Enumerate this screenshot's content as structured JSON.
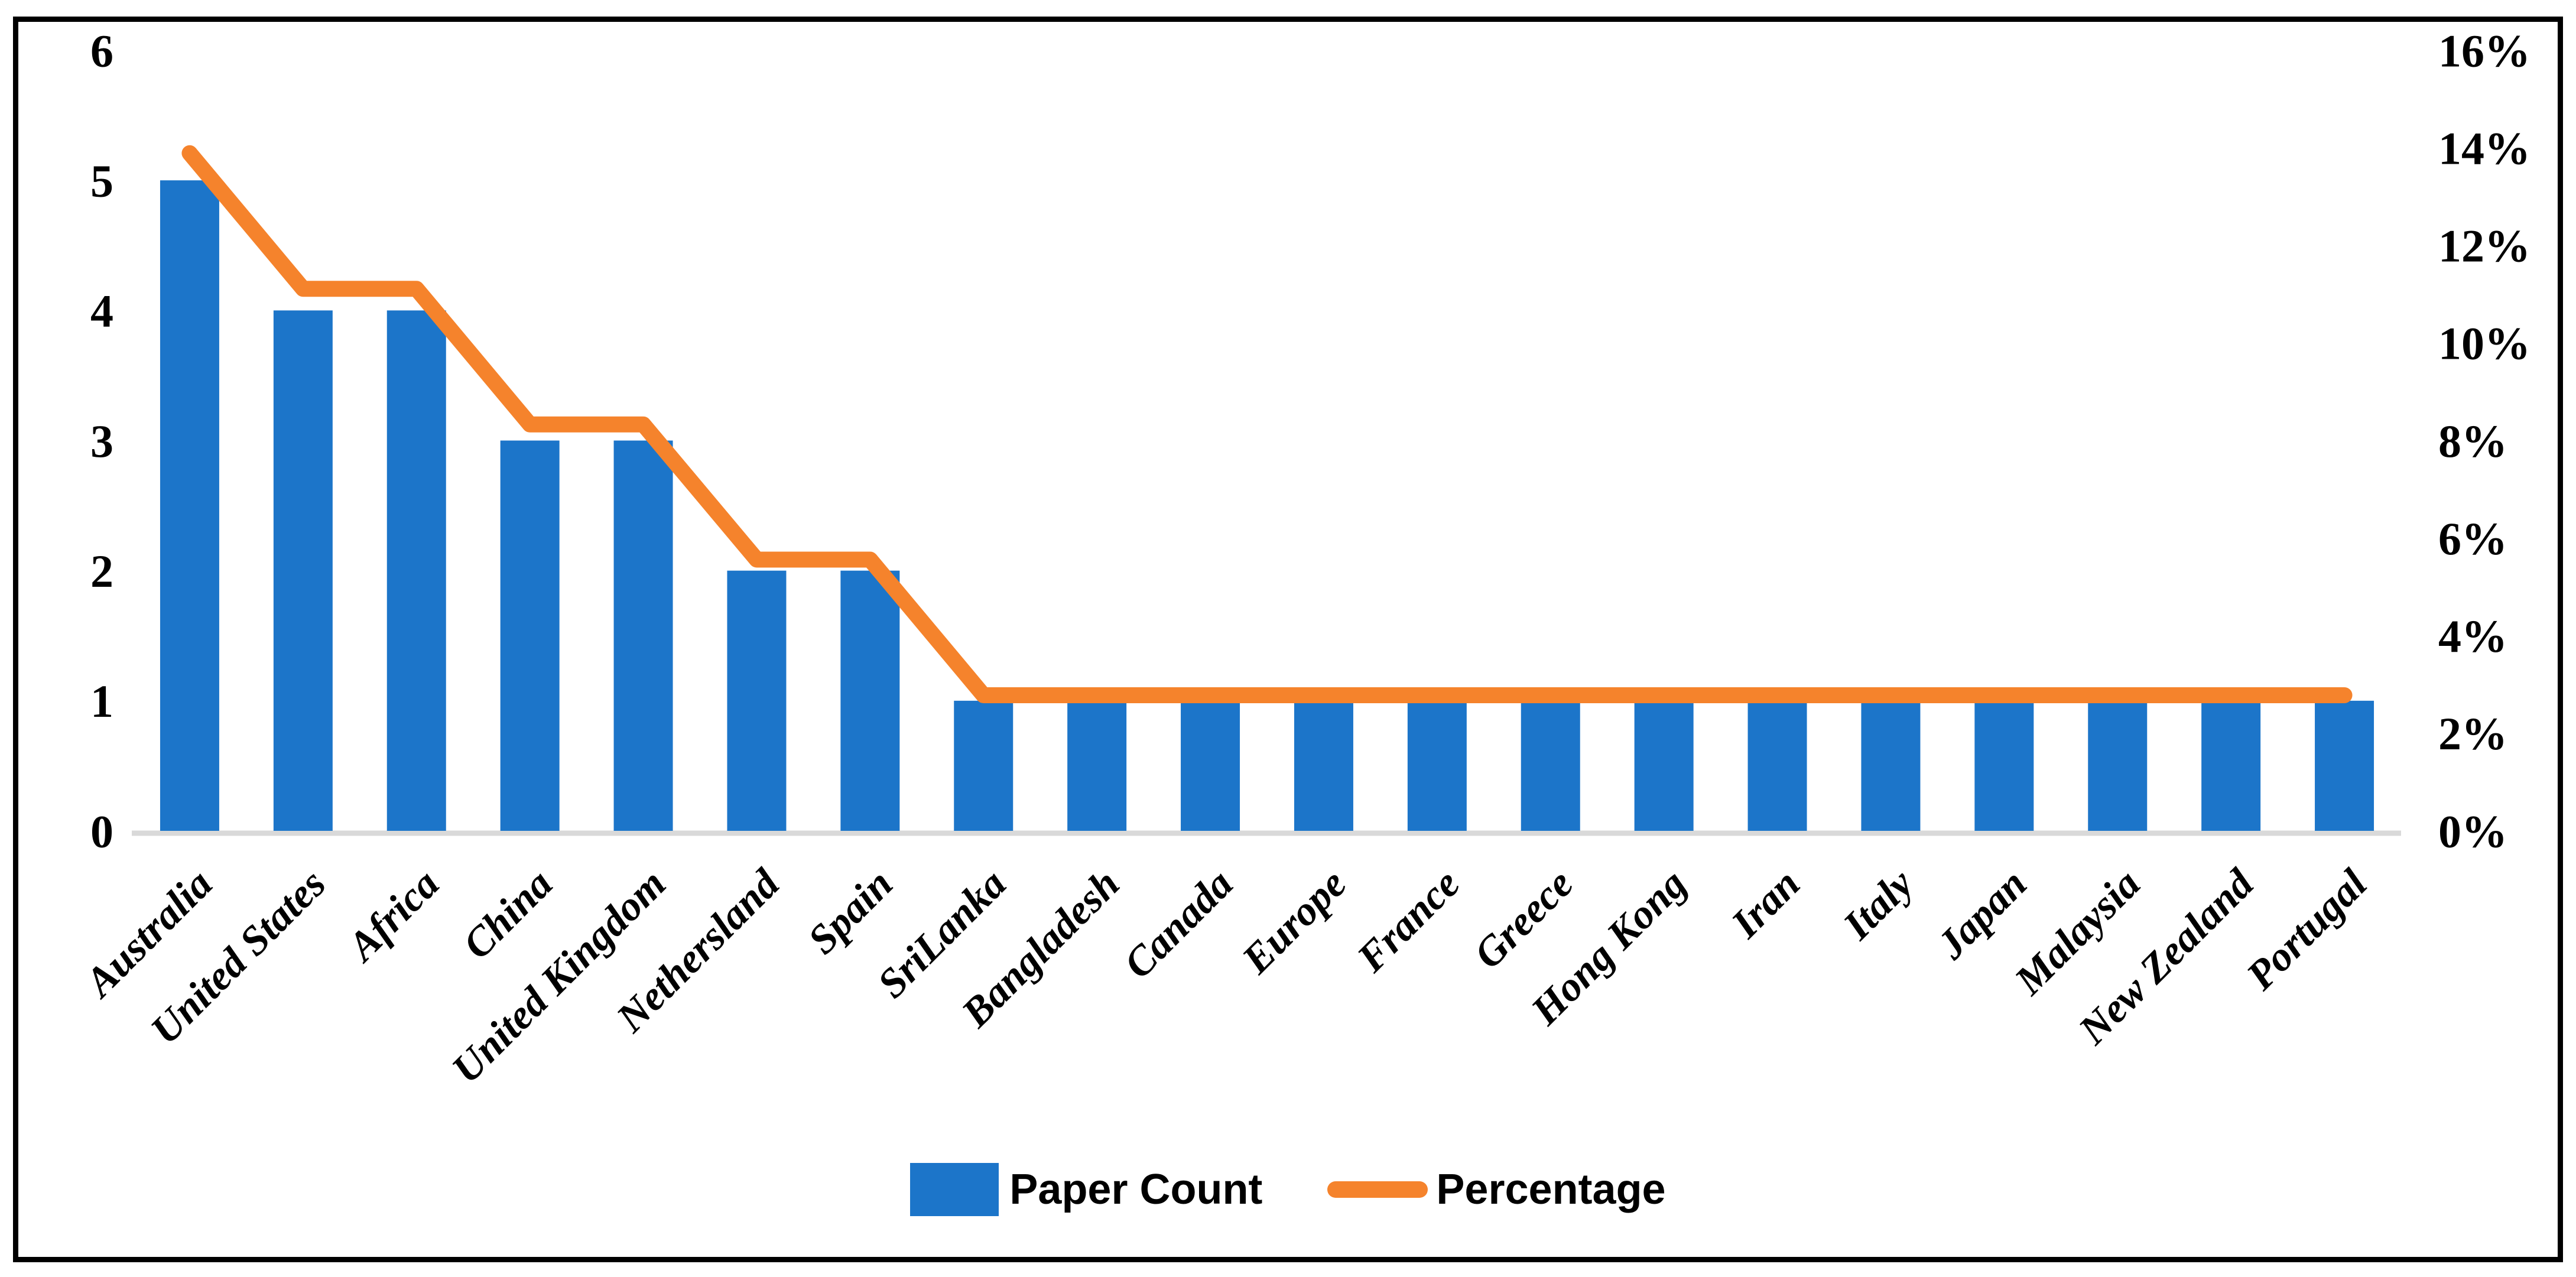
{
  "chart_data": {
    "type": "bar+line",
    "title": "",
    "categories": [
      "Australia",
      "United States",
      "Africa",
      "China",
      "United Kingdom",
      "Nethersland",
      "Spain",
      "SriLanka",
      "Bangladesh",
      "Canada",
      "Europe",
      "France",
      "Greece",
      "Hong Kong",
      "Iran",
      "Italy",
      "Japan",
      "Malaysia",
      "New Zealand",
      "Portugal"
    ],
    "series": [
      {
        "name": "Paper Count",
        "type": "bar",
        "axis": "left",
        "color": "#1C75C9",
        "values": [
          5,
          4,
          4,
          3,
          3,
          2,
          2,
          1,
          1,
          1,
          1,
          1,
          1,
          1,
          1,
          1,
          1,
          1,
          1,
          1
        ]
      },
      {
        "name": "Percentage",
        "type": "line",
        "axis": "right",
        "color": "#F5832C",
        "values": [
          13.89,
          11.11,
          11.11,
          8.33,
          8.33,
          5.56,
          5.56,
          2.78,
          2.78,
          2.78,
          2.78,
          2.78,
          2.78,
          2.78,
          2.78,
          2.78,
          2.78,
          2.78,
          2.78,
          2.78
        ]
      }
    ],
    "left_axis": {
      "min": 0,
      "max": 6,
      "step": 1,
      "tick_labels": [
        "0",
        "1",
        "2",
        "3",
        "4",
        "5",
        "6"
      ]
    },
    "right_axis": {
      "min": 0,
      "max": 16,
      "step": 2,
      "unit": "percent",
      "tick_labels": [
        "0%",
        "2%",
        "4%",
        "6%",
        "8%",
        "10%",
        "12%",
        "14%",
        "16%"
      ]
    },
    "grid": "off",
    "legend": {
      "position": "bottom-center",
      "items": [
        {
          "label": "Paper Count",
          "marker": "square",
          "color": "#1C75C9"
        },
        {
          "label": "Percentage",
          "marker": "line",
          "color": "#F5832C"
        }
      ]
    }
  },
  "colors": {
    "bar_blue": "#1C75C9",
    "line_orange": "#F5832C",
    "axis_line_gray": "#D9D9D9",
    "frame_black": "#000000",
    "background": "#FFFFFF"
  }
}
